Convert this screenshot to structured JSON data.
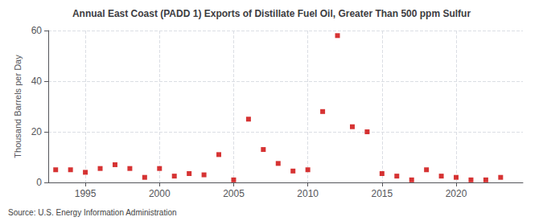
{
  "chart_data": {
    "type": "scatter",
    "title": "Annual East Coast (PADD 1) Exports of Distillate Fuel Oil, Greater Than 500 ppm Sulfur",
    "ylabel": "Thousand Barrels per Day",
    "source": "Source: U.S. Energy Information Administration",
    "x": [
      1993,
      1994,
      1995,
      1996,
      1997,
      1998,
      1999,
      2000,
      2001,
      2002,
      2003,
      2004,
      2005,
      2006,
      2007,
      2008,
      2009,
      2010,
      2011,
      2012,
      2013,
      2014,
      2015,
      2016,
      2017,
      2018,
      2019,
      2020,
      2021,
      2022,
      2023
    ],
    "values": [
      5.0,
      5.0,
      4.0,
      5.5,
      7.0,
      5.5,
      2.0,
      5.5,
      2.5,
      3.5,
      3.0,
      11.0,
      1.0,
      25.0,
      13.0,
      7.5,
      4.5,
      5.0,
      28.0,
      58.0,
      22.0,
      20.0,
      3.5,
      2.5,
      1.0,
      5.0,
      2.5,
      2.0,
      1.0,
      1.0,
      2.0
    ],
    "color": "#cc0000",
    "marker": "square",
    "xlim": [
      1992.5,
      2024.5
    ],
    "ylim": [
      0,
      60
    ],
    "xticks": [
      1995,
      2000,
      2005,
      2010,
      2015,
      2020
    ],
    "yticks": [
      0,
      20,
      40,
      60
    ],
    "grid": true
  }
}
